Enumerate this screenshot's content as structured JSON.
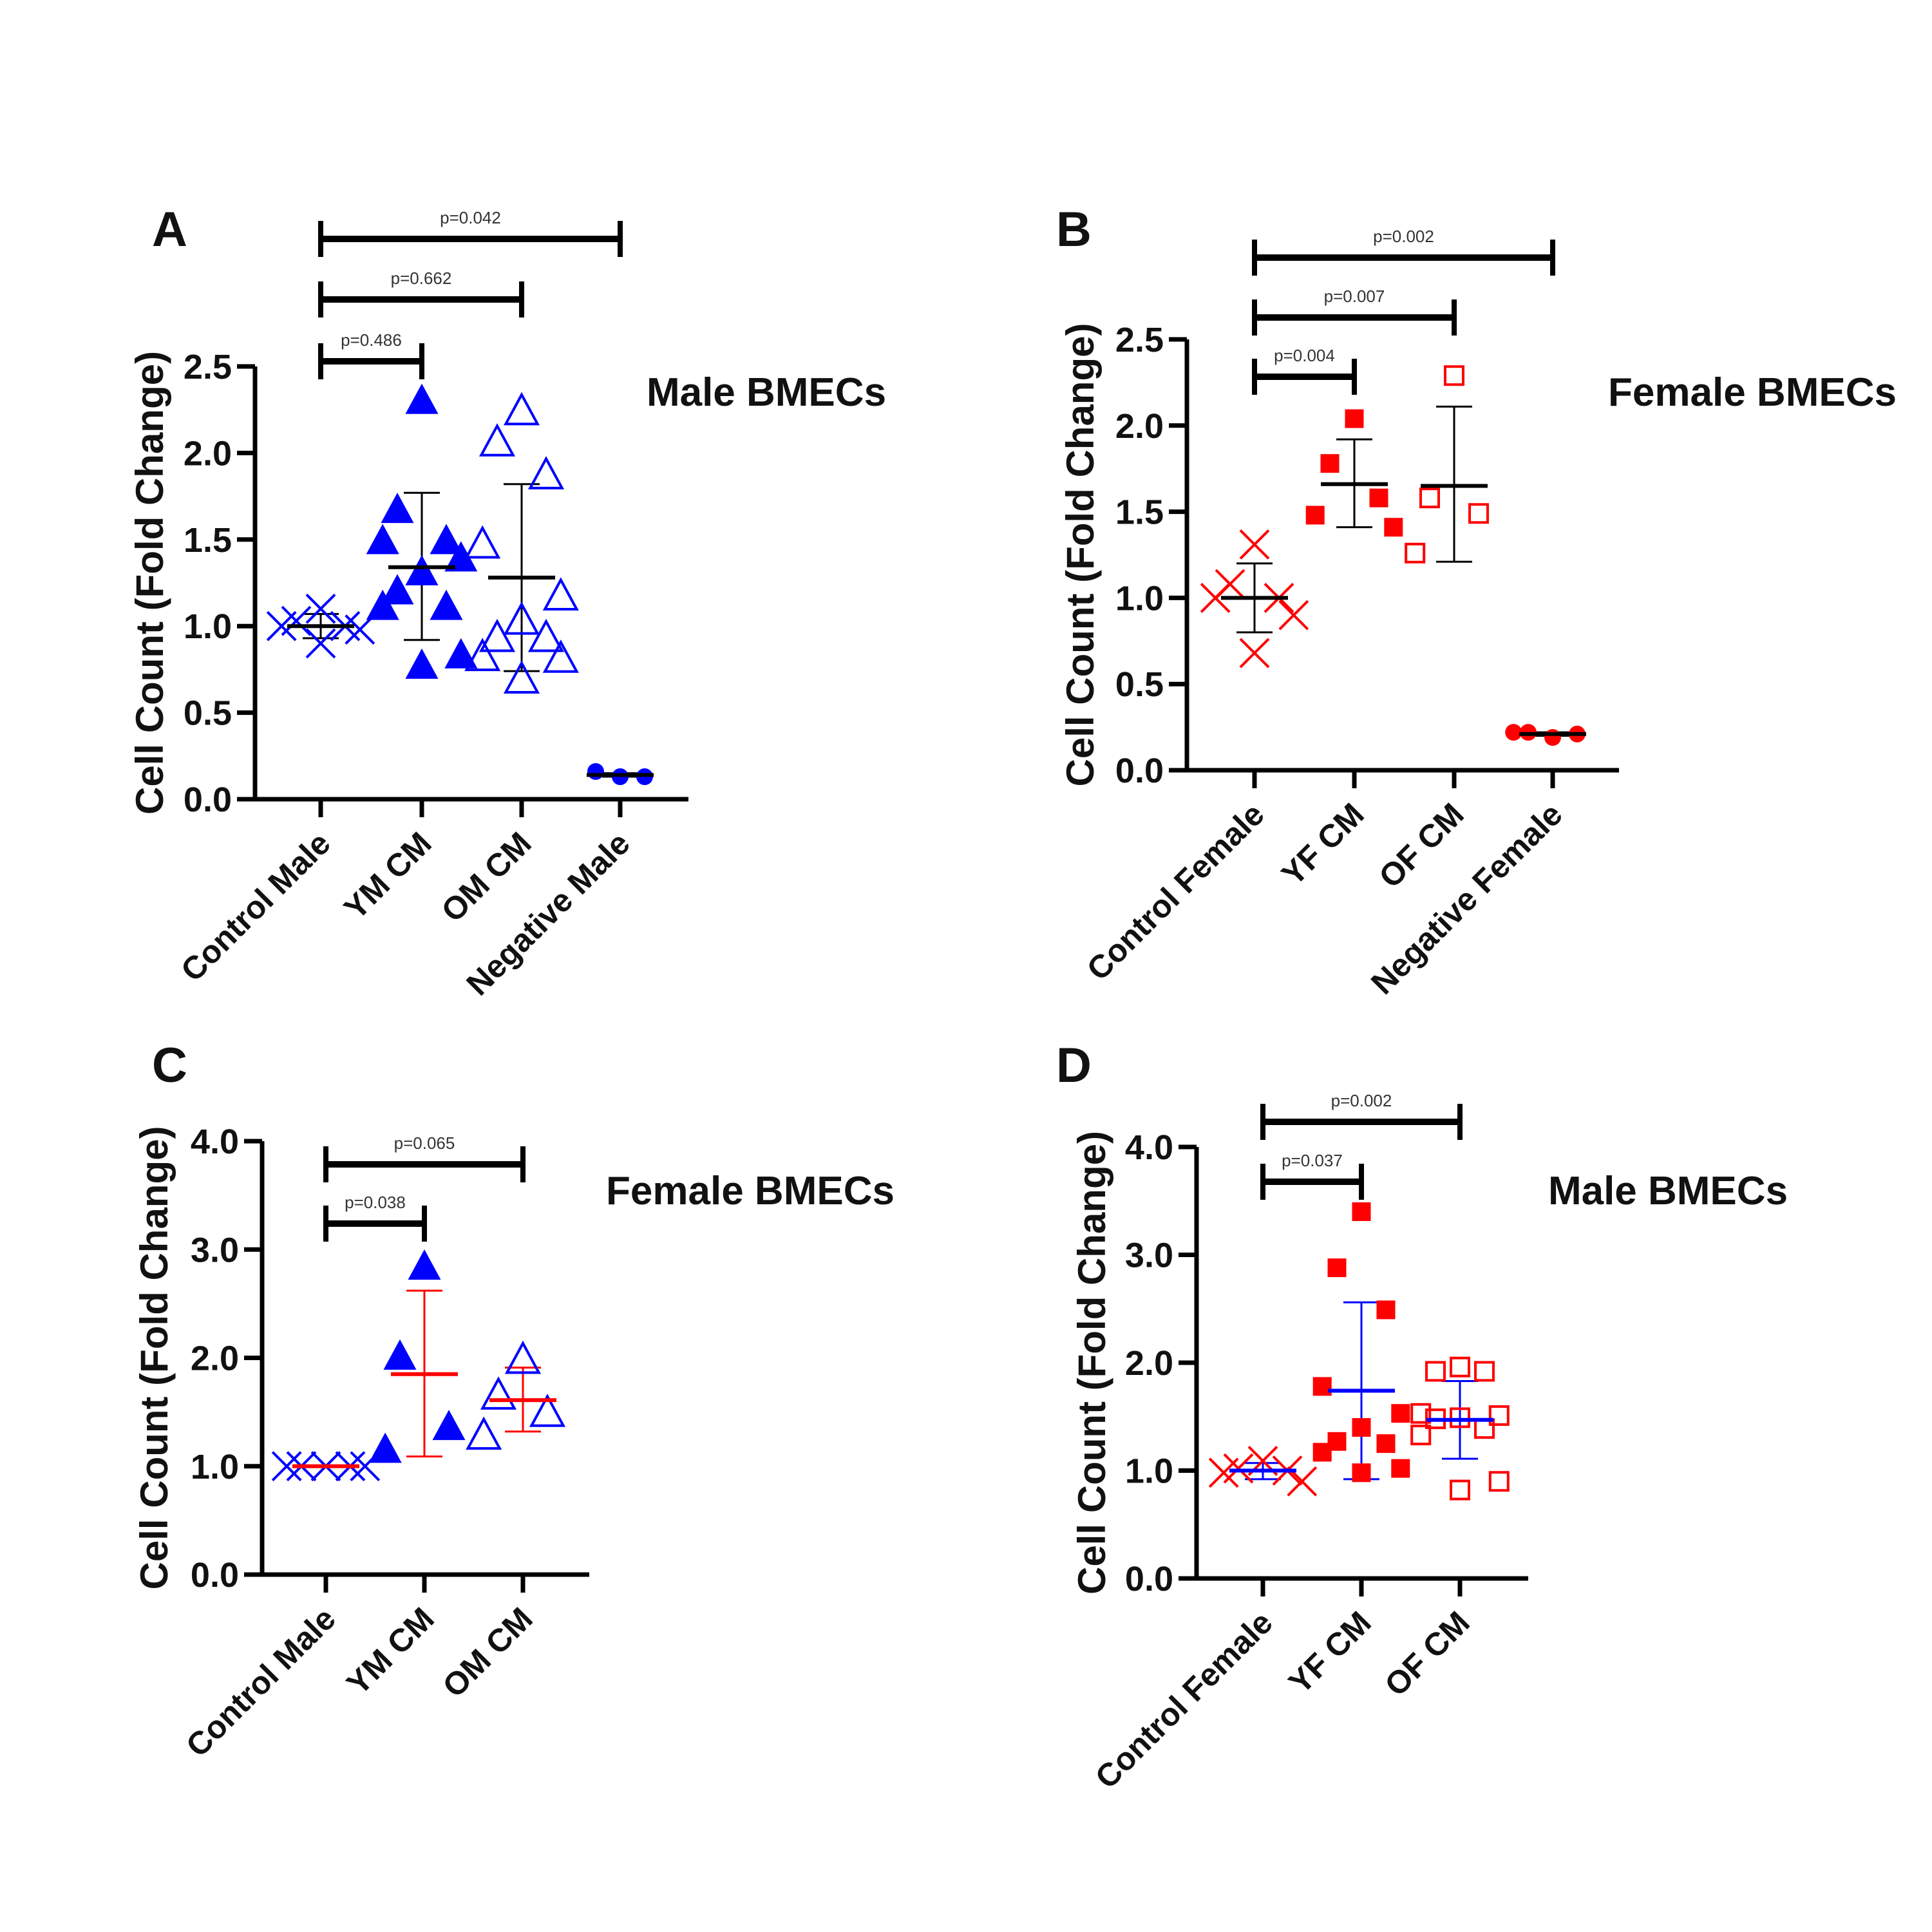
{
  "chart_data": [
    {
      "panel": "A",
      "type": "scatter",
      "title": "Male BMECs",
      "xlabel": "",
      "ylabel": "Cell Count (Fold Change)",
      "ylim": [
        0,
        2.5
      ],
      "yticks": [
        "0.0",
        "0.5",
        "1.0",
        "1.5",
        "2.0",
        "2.5"
      ],
      "ytick_values": [
        0,
        0.5,
        1.0,
        1.5,
        2.0,
        2.5
      ],
      "grid": false,
      "categories": [
        "Control Male",
        "YM CM",
        "OM CM",
        "Negative Male"
      ],
      "series": [
        {
          "name": "Control Male",
          "marker": "x",
          "color": "#0000FF",
          "values": [
            1.1,
            1.03,
            1.0,
            1.0,
            0.98,
            0.9
          ],
          "mean": 1.0,
          "sd_low": 0.93,
          "sd_high": 1.07,
          "line_color": "#000000"
        },
        {
          "name": "YM CM",
          "marker": "triangle-filled",
          "color": "#0000FF",
          "values": [
            2.3,
            1.67,
            1.49,
            1.49,
            1.39,
            1.31,
            1.2,
            1.11,
            1.11,
            0.83,
            0.77
          ],
          "mean": 1.34,
          "sd_low": 0.92,
          "sd_high": 1.77,
          "line_color": "#000000"
        },
        {
          "name": "OM CM",
          "marker": "triangle-open",
          "color": "#0000FF",
          "values": [
            2.24,
            2.06,
            1.87,
            1.47,
            1.17,
            1.03,
            0.93,
            0.93,
            0.82,
            0.81,
            0.69
          ],
          "mean": 1.28,
          "sd_low": 0.74,
          "sd_high": 1.82,
          "line_color": "#000000"
        },
        {
          "name": "Negative Male",
          "marker": "circle-filled",
          "color": "#0000FF",
          "values": [
            0.13,
            0.16,
            0.13
          ],
          "mean": 0.14,
          "sd_low": 0.13,
          "sd_high": 0.15,
          "line_color": "#000000"
        }
      ],
      "comparisons": [
        {
          "from": "Control Male",
          "to": "YM CM",
          "label": "p=0.486"
        },
        {
          "from": "Control Male",
          "to": "OM CM",
          "label": "p=0.662"
        },
        {
          "from": "Control Male",
          "to": "Negative Male",
          "label": "p=0.042"
        }
      ]
    },
    {
      "panel": "B",
      "type": "scatter",
      "title": "Female BMECs",
      "xlabel": "",
      "ylabel": "Cell Count (Fold Change)",
      "ylim": [
        0,
        2.5
      ],
      "yticks": [
        "0.0",
        "0.5",
        "1.0",
        "1.5",
        "2.0",
        "2.5"
      ],
      "ytick_values": [
        0,
        0.5,
        1.0,
        1.5,
        2.0,
        2.5
      ],
      "grid": false,
      "categories": [
        "Control Female",
        "YF CM",
        "OF CM",
        "Negative Female"
      ],
      "series": [
        {
          "name": "Control Female",
          "marker": "x",
          "color": "#FF0000",
          "values": [
            1.31,
            1.08,
            1.0,
            1.0,
            0.9,
            0.68
          ],
          "mean": 1.0,
          "sd_low": 0.8,
          "sd_high": 1.2,
          "line_color": "#000000"
        },
        {
          "name": "YF CM",
          "marker": "square-filled",
          "color": "#FF0000",
          "values": [
            2.04,
            1.78,
            1.58,
            1.48,
            1.41
          ],
          "mean": 1.66,
          "sd_low": 1.41,
          "sd_high": 1.92,
          "line_color": "#000000"
        },
        {
          "name": "OF CM",
          "marker": "square-open",
          "color": "#FF0000",
          "values": [
            2.29,
            1.58,
            1.49,
            1.26
          ],
          "mean": 1.65,
          "sd_low": 1.21,
          "sd_high": 2.11,
          "line_color": "#000000"
        },
        {
          "name": "Negative Female",
          "marker": "circle-filled",
          "color": "#FF0000",
          "values": [
            0.19,
            0.22,
            0.21,
            0.22
          ],
          "mean": 0.21,
          "sd_low": 0.2,
          "sd_high": 0.22,
          "line_color": "#000000"
        }
      ],
      "comparisons": [
        {
          "from": "Control Female",
          "to": "YF CM",
          "label": "p=0.004"
        },
        {
          "from": "Control Female",
          "to": "OF CM",
          "label": "p=0.007"
        },
        {
          "from": "Control Female",
          "to": "Negative Female",
          "label": "p=0.002"
        }
      ]
    },
    {
      "panel": "C",
      "type": "scatter",
      "title": "Female BMECs",
      "xlabel": "",
      "ylabel": "Cell Count (Fold Change)",
      "ylim": [
        0,
        4.0
      ],
      "yticks": [
        "0.0",
        "1.0",
        "2.0",
        "3.0",
        "4.0"
      ],
      "ytick_values": [
        0,
        1.0,
        2.0,
        3.0,
        4.0
      ],
      "grid": false,
      "categories": [
        "Control Male",
        "YM CM",
        "OM CM"
      ],
      "series": [
        {
          "name": "Control Male",
          "marker": "x",
          "color": "#0000FF",
          "values": [
            1.0,
            1.0,
            1.0,
            1.0,
            1.0
          ],
          "mean": 1.0,
          "sd_low": 1.0,
          "sd_high": 1.0,
          "line_color": "#FF0000"
        },
        {
          "name": "YM CM",
          "marker": "triangle-filled",
          "color": "#0000FF",
          "values": [
            2.84,
            2.01,
            1.36,
            1.15
          ],
          "mean": 1.85,
          "sd_low": 1.09,
          "sd_high": 2.62,
          "line_color": "#FF0000"
        },
        {
          "name": "OM CM",
          "marker": "triangle-open",
          "color": "#0000FF",
          "values": [
            1.98,
            1.65,
            1.49,
            1.28
          ],
          "mean": 1.61,
          "sd_low": 1.32,
          "sd_high": 1.91,
          "line_color": "#FF0000"
        }
      ],
      "comparisons": [
        {
          "from": "Control Male",
          "to": "YM CM",
          "label": "p=0.038"
        },
        {
          "from": "Control Male",
          "to": "OM CM",
          "label": "p=0.065"
        }
      ]
    },
    {
      "panel": "D",
      "type": "scatter",
      "title": "Male BMECs",
      "xlabel": "",
      "ylabel": "Cell Count (Fold Change)",
      "ylim": [
        0,
        4.0
      ],
      "yticks": [
        "0.0",
        "1.0",
        "2.0",
        "3.0",
        "4.0"
      ],
      "ytick_values": [
        0,
        1.0,
        2.0,
        3.0,
        4.0
      ],
      "grid": false,
      "categories": [
        "Control Female",
        "YF CM",
        "OF CM"
      ],
      "series": [
        {
          "name": "Control Female",
          "marker": "x",
          "color": "#FF0000",
          "values": [
            1.09,
            1.02,
            1.0,
            0.98,
            0.9
          ],
          "mean": 1.0,
          "sd_low": 0.92,
          "sd_high": 1.07,
          "line_color": "#0000FF"
        },
        {
          "name": "YF CM",
          "marker": "square-filled",
          "color": "#FF0000",
          "values": [
            3.4,
            2.88,
            2.49,
            1.78,
            1.53,
            1.4,
            1.27,
            1.25,
            1.17,
            1.02,
            0.98
          ],
          "mean": 1.74,
          "sd_low": 0.92,
          "sd_high": 2.56,
          "line_color": "#0000FF"
        },
        {
          "name": "OF CM",
          "marker": "square-open",
          "color": "#FF0000",
          "values": [
            1.96,
            1.92,
            1.92,
            1.53,
            1.51,
            1.49,
            1.48,
            1.39,
            1.33,
            0.9,
            0.82
          ],
          "mean": 1.47,
          "sd_low": 1.11,
          "sd_high": 1.83,
          "line_color": "#0000FF"
        }
      ],
      "comparisons": [
        {
          "from": "Control Female",
          "to": "YF CM",
          "label": "p=0.037"
        },
        {
          "from": "Control Female",
          "to": "OF CM",
          "label": "p=0.002"
        }
      ]
    }
  ]
}
